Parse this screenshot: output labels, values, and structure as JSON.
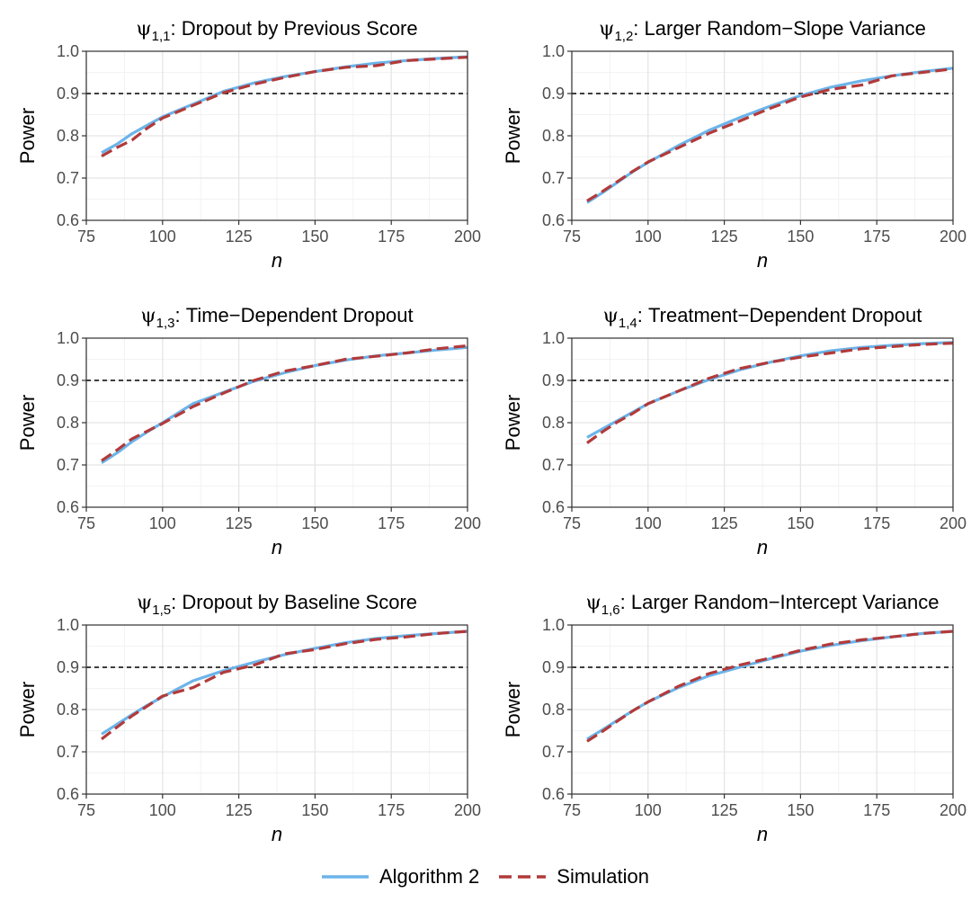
{
  "figure": {
    "colors": {
      "algorithm": "#6CB4EA",
      "simulation": "#B23A3A",
      "reference": "#000000",
      "panel_bg": "#ffffff",
      "grid_major": "#E5E5E5",
      "grid_minor": "#F2F2F2",
      "border": "#333333"
    },
    "legend": {
      "items": [
        {
          "label": "Algorithm 2",
          "style": "solid",
          "color": "#6CB4EA"
        },
        {
          "label": "Simulation",
          "style": "dashed",
          "color": "#B23A3A"
        }
      ]
    }
  },
  "chart_data": [
    {
      "type": "line",
      "title_symbol": "ψ",
      "title_subscript": "1,1",
      "title_text": ": Dropout by Previous Score",
      "xlabel": "n",
      "ylabel": "Power",
      "xlim": [
        75,
        200
      ],
      "ylim": [
        0.6,
        1.0
      ],
      "xticks": [
        75,
        100,
        125,
        150,
        175,
        200
      ],
      "yticks": [
        0.6,
        0.7,
        0.8,
        0.9,
        1.0
      ],
      "yticklabels": [
        "0.6",
        "0.7",
        "0.8",
        "0.9",
        "1.0"
      ],
      "reference_line": 0.9,
      "x": [
        80,
        85,
        90,
        95,
        100,
        110,
        120,
        130,
        140,
        150,
        160,
        170,
        180,
        190,
        200
      ],
      "series": [
        {
          "name": "Algorithm 2",
          "values": [
            0.76,
            0.78,
            0.805,
            0.825,
            0.845,
            0.875,
            0.905,
            0.925,
            0.94,
            0.952,
            0.963,
            0.972,
            0.978,
            0.983,
            0.987
          ]
        },
        {
          "name": "Simulation",
          "values": [
            0.752,
            0.772,
            0.79,
            0.818,
            0.842,
            0.872,
            0.902,
            0.922,
            0.938,
            0.952,
            0.962,
            0.966,
            0.978,
            0.982,
            0.986
          ]
        }
      ]
    },
    {
      "type": "line",
      "title_symbol": "ψ",
      "title_subscript": "1,2",
      "title_text": ": Larger Random−Slope Variance",
      "xlabel": "n",
      "ylabel": "Power",
      "xlim": [
        75,
        200
      ],
      "ylim": [
        0.6,
        1.0
      ],
      "xticks": [
        75,
        100,
        125,
        150,
        175,
        200
      ],
      "yticks": [
        0.6,
        0.7,
        0.8,
        0.9,
        1.0
      ],
      "yticklabels": [
        "0.6",
        "0.7",
        "0.8",
        "0.9",
        "1.0"
      ],
      "reference_line": 0.9,
      "x": [
        80,
        85,
        90,
        95,
        100,
        110,
        120,
        130,
        140,
        150,
        160,
        170,
        180,
        190,
        200
      ],
      "series": [
        {
          "name": "Algorithm 2",
          "values": [
            0.642,
            0.665,
            0.69,
            0.715,
            0.737,
            0.777,
            0.813,
            0.843,
            0.87,
            0.895,
            0.915,
            0.93,
            0.942,
            0.952,
            0.96
          ]
        },
        {
          "name": "Simulation",
          "values": [
            0.646,
            0.668,
            0.692,
            0.716,
            0.738,
            0.772,
            0.806,
            0.835,
            0.865,
            0.892,
            0.91,
            0.92,
            0.942,
            0.95,
            0.958
          ]
        }
      ]
    },
    {
      "type": "line",
      "title_symbol": "ψ",
      "title_subscript": "1,3",
      "title_text": ": Time−Dependent Dropout",
      "xlabel": "n",
      "ylabel": "Power",
      "xlim": [
        75,
        200
      ],
      "ylim": [
        0.6,
        1.0
      ],
      "xticks": [
        75,
        100,
        125,
        150,
        175,
        200
      ],
      "yticks": [
        0.6,
        0.7,
        0.8,
        0.9,
        1.0
      ],
      "yticklabels": [
        "0.6",
        "0.7",
        "0.8",
        "0.9",
        "1.0"
      ],
      "reference_line": 0.9,
      "x": [
        80,
        85,
        90,
        95,
        100,
        110,
        120,
        130,
        140,
        150,
        160,
        170,
        180,
        190,
        200
      ],
      "series": [
        {
          "name": "Algorithm 2",
          "values": [
            0.705,
            0.728,
            0.755,
            0.778,
            0.8,
            0.845,
            0.872,
            0.898,
            0.918,
            0.935,
            0.948,
            0.958,
            0.965,
            0.972,
            0.978
          ]
        },
        {
          "name": "Simulation",
          "values": [
            0.71,
            0.735,
            0.762,
            0.78,
            0.798,
            0.838,
            0.87,
            0.9,
            0.922,
            0.935,
            0.95,
            0.957,
            0.965,
            0.975,
            0.982
          ]
        }
      ]
    },
    {
      "type": "line",
      "title_symbol": "ψ",
      "title_subscript": "1,4",
      "title_text": ": Treatment−Dependent Dropout",
      "xlabel": "n",
      "ylabel": "Power",
      "xlim": [
        75,
        200
      ],
      "ylim": [
        0.6,
        1.0
      ],
      "xticks": [
        75,
        100,
        125,
        150,
        175,
        200
      ],
      "yticks": [
        0.6,
        0.7,
        0.8,
        0.9,
        1.0
      ],
      "yticklabels": [
        "0.6",
        "0.7",
        "0.8",
        "0.9",
        "1.0"
      ],
      "reference_line": 0.9,
      "x": [
        80,
        85,
        90,
        95,
        100,
        110,
        120,
        130,
        140,
        150,
        160,
        170,
        180,
        190,
        200
      ],
      "series": [
        {
          "name": "Algorithm 2",
          "values": [
            0.765,
            0.785,
            0.805,
            0.825,
            0.845,
            0.875,
            0.902,
            0.925,
            0.943,
            0.958,
            0.97,
            0.978,
            0.983,
            0.987,
            0.99
          ]
        },
        {
          "name": "Simulation",
          "values": [
            0.752,
            0.778,
            0.802,
            0.822,
            0.845,
            0.875,
            0.905,
            0.928,
            0.943,
            0.955,
            0.965,
            0.975,
            0.98,
            0.985,
            0.988
          ]
        }
      ]
    },
    {
      "type": "line",
      "title_symbol": "ψ",
      "title_subscript": "1,5",
      "title_text": ": Dropout by Baseline Score",
      "xlabel": "n",
      "ylabel": "Power",
      "xlim": [
        75,
        200
      ],
      "ylim": [
        0.6,
        1.0
      ],
      "xticks": [
        75,
        100,
        125,
        150,
        175,
        200
      ],
      "yticks": [
        0.6,
        0.7,
        0.8,
        0.9,
        1.0
      ],
      "yticklabels": [
        "0.6",
        "0.7",
        "0.8",
        "0.9",
        "1.0"
      ],
      "reference_line": 0.9,
      "x": [
        80,
        85,
        90,
        95,
        100,
        110,
        120,
        130,
        140,
        150,
        160,
        170,
        180,
        190,
        200
      ],
      "series": [
        {
          "name": "Algorithm 2",
          "values": [
            0.742,
            0.765,
            0.788,
            0.81,
            0.83,
            0.868,
            0.892,
            0.912,
            0.93,
            0.945,
            0.958,
            0.968,
            0.975,
            0.98,
            0.985
          ]
        },
        {
          "name": "Simulation",
          "values": [
            0.73,
            0.758,
            0.785,
            0.808,
            0.832,
            0.852,
            0.888,
            0.905,
            0.932,
            0.942,
            0.956,
            0.966,
            0.972,
            0.98,
            0.985
          ]
        }
      ]
    },
    {
      "type": "line",
      "title_symbol": "ψ",
      "title_subscript": "1,6",
      "title_text": ": Larger Random−Intercept Variance",
      "xlabel": "n",
      "ylabel": "Power",
      "xlim": [
        75,
        200
      ],
      "ylim": [
        0.6,
        1.0
      ],
      "xticks": [
        75,
        100,
        125,
        150,
        175,
        200
      ],
      "yticks": [
        0.6,
        0.7,
        0.8,
        0.9,
        1.0
      ],
      "yticklabels": [
        "0.6",
        "0.7",
        "0.8",
        "0.9",
        "1.0"
      ],
      "reference_line": 0.9,
      "x": [
        80,
        85,
        90,
        95,
        100,
        110,
        120,
        130,
        140,
        150,
        160,
        170,
        180,
        190,
        200
      ],
      "series": [
        {
          "name": "Algorithm 2",
          "values": [
            0.73,
            0.752,
            0.775,
            0.797,
            0.818,
            0.852,
            0.88,
            0.9,
            0.92,
            0.938,
            0.952,
            0.963,
            0.972,
            0.98,
            0.985
          ]
        },
        {
          "name": "Simulation",
          "values": [
            0.725,
            0.748,
            0.773,
            0.797,
            0.818,
            0.855,
            0.885,
            0.905,
            0.922,
            0.94,
            0.955,
            0.965,
            0.972,
            0.98,
            0.985
          ]
        }
      ]
    }
  ]
}
